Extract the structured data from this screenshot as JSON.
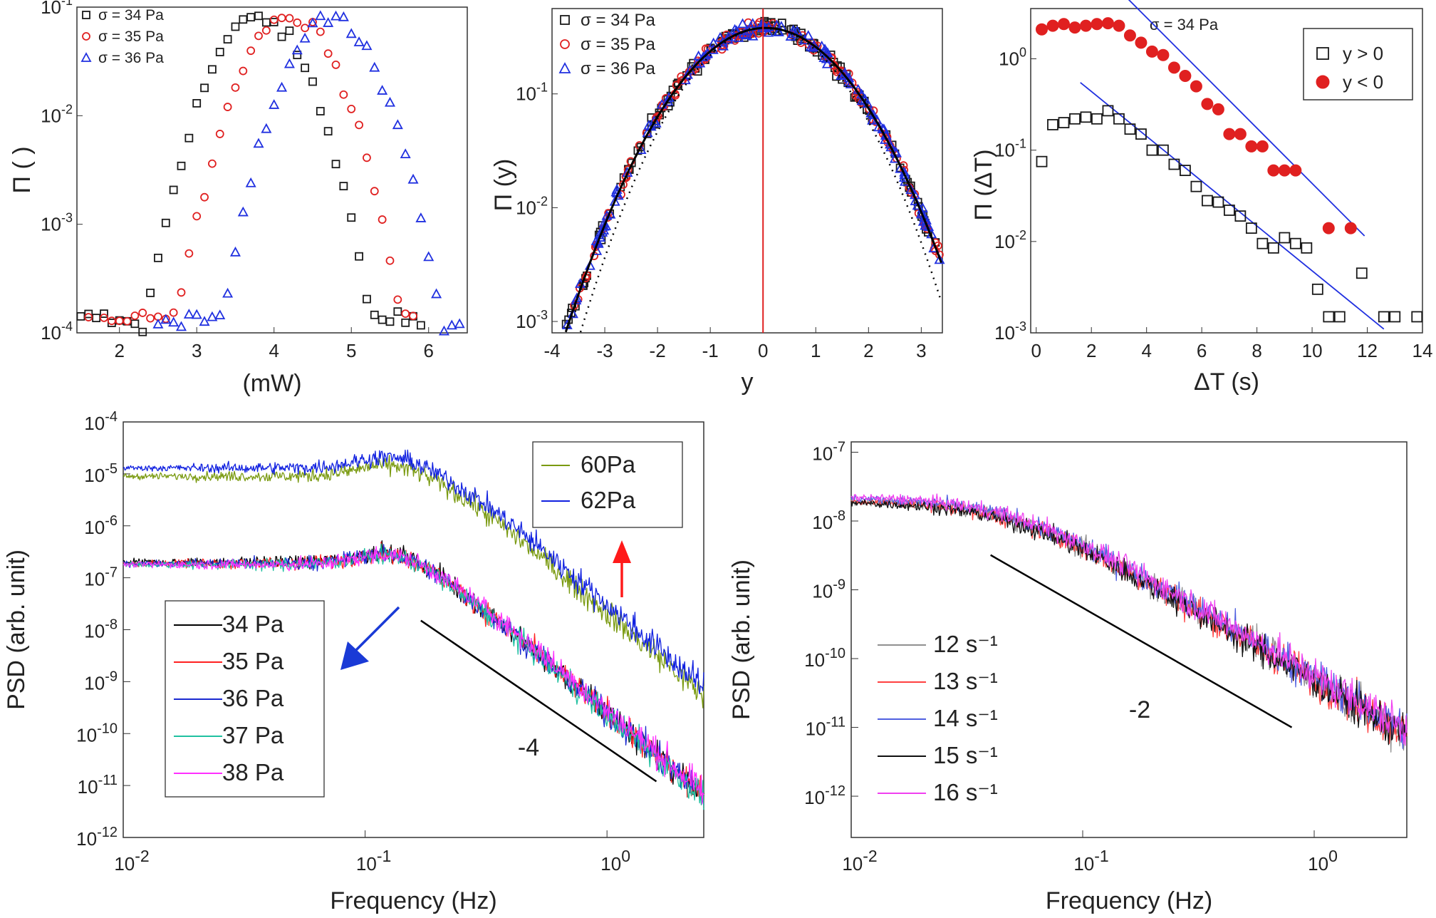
{
  "chart_data": [
    {
      "id": "a",
      "type": "scatter",
      "xlabel": "(mW)",
      "ylabel": "Π (  )",
      "x_ticks": [
        "2",
        "3",
        "4",
        "5",
        "6"
      ],
      "y_ticks": [
        "10",
        "10",
        "10",
        "10"
      ],
      "y_tick_exps": [
        "-4",
        "-3",
        "-2",
        "-1"
      ],
      "xlim": [
        1.45,
        6.5
      ],
      "ylim_log10": [
        -4,
        -1
      ],
      "series": [
        {
          "name": "σ = 34 Pa",
          "marker": "square",
          "color": "#1a1a1a",
          "mu": 3.8,
          "sigma": 0.62,
          "x": [
            1.5,
            1.6,
            1.7,
            1.8,
            1.9,
            2.0,
            2.1,
            2.2,
            2.3,
            2.4,
            2.5,
            2.6,
            2.7,
            2.8,
            2.9,
            3.0,
            3.1,
            3.2,
            3.3,
            3.4,
            3.5,
            3.6,
            3.7,
            3.8,
            3.9,
            4.0,
            4.1,
            4.2,
            4.3,
            4.4,
            4.5,
            4.6,
            4.7,
            4.8,
            4.9,
            5.0,
            5.1,
            5.2,
            5.3,
            5.4,
            5.5,
            5.6,
            5.7,
            5.8,
            5.9
          ]
        },
        {
          "name": "σ = 35 Pa",
          "marker": "circle",
          "color": "#e02020",
          "mu": 4.2,
          "sigma": 0.62,
          "x": [
            1.6,
            1.8,
            1.9,
            2.0,
            2.1,
            2.2,
            2.3,
            2.4,
            2.5,
            2.6,
            2.7,
            2.8,
            2.9,
            3.0,
            3.1,
            3.2,
            3.3,
            3.4,
            3.5,
            3.6,
            3.7,
            3.8,
            3.9,
            4.0,
            4.1,
            4.2,
            4.3,
            4.4,
            4.5,
            4.6,
            4.7,
            4.8,
            4.9,
            5.0,
            5.1,
            5.2,
            5.3,
            5.4,
            5.5,
            5.6,
            5.7,
            5.8
          ]
        },
        {
          "name": "σ = 36 Pa",
          "marker": "triangle",
          "color": "#2030e0",
          "mu": 4.75,
          "sigma": 0.6,
          "x": [
            2.5,
            2.6,
            2.7,
            2.8,
            2.9,
            3.0,
            3.1,
            3.2,
            3.3,
            3.4,
            3.5,
            3.6,
            3.7,
            3.8,
            3.9,
            4.0,
            4.1,
            4.2,
            4.3,
            4.4,
            4.5,
            4.6,
            4.7,
            4.8,
            4.9,
            5.0,
            5.1,
            5.2,
            5.3,
            5.4,
            5.5,
            5.6,
            5.7,
            5.8,
            5.9,
            6.0,
            6.1,
            6.2,
            6.3,
            6.4
          ]
        }
      ]
    },
    {
      "id": "b",
      "type": "scatter",
      "xlabel": "y",
      "ylabel": "Π (y)",
      "x_ticks": [
        "-4",
        "-3",
        "-2",
        "-1",
        "0",
        "1",
        "2",
        "3"
      ],
      "y_ticks": [
        "10",
        "10",
        "10"
      ],
      "y_tick_exps": [
        "-3",
        "-2",
        "-1"
      ],
      "xlim": [
        -4,
        3.4
      ],
      "ylim_log10": [
        -3.1,
        -0.25
      ],
      "series": [
        {
          "name": "σ = 34 Pa",
          "marker": "square",
          "color": "#1a1a1a"
        },
        {
          "name": "σ = 35 Pa",
          "marker": "circle",
          "color": "#e02020"
        },
        {
          "name": "σ = 36 Pa",
          "marker": "triangle",
          "color": "#2030e0"
        }
      ],
      "curves": [
        {
          "style": "solid",
          "color": "#000000",
          "kind": "fit",
          "mu": 0.05,
          "sigma": 1.08,
          "peak": 0.38
        },
        {
          "style": "dotted",
          "color": "#000000",
          "kind": "gaussian",
          "mu": 0.05,
          "sigma": 1.0,
          "peak": 0.38
        }
      ],
      "vline_x": 0,
      "vline_color": "#e02020"
    },
    {
      "id": "c",
      "type": "scatter",
      "title": "σ = 34 Pa",
      "xlabel": "ΔT (s)",
      "ylabel": "Π (ΔT)",
      "x_ticks": [
        "0",
        "2",
        "4",
        "6",
        "8",
        "10",
        "12",
        "14"
      ],
      "y_ticks": [
        "10",
        "10",
        "10",
        "10"
      ],
      "y_tick_exps": [
        "-3",
        "-2",
        "-1",
        "0"
      ],
      "xlim": [
        -0.2,
        14
      ],
      "ylim_log10": [
        -3,
        0.55
      ],
      "series": [
        {
          "name": "y > 0",
          "marker": "square",
          "color": "#1a1a1a",
          "x": [
            0.2,
            0.6,
            1.0,
            1.4,
            1.8,
            2.2,
            2.6,
            3.0,
            3.4,
            3.8,
            4.2,
            4.6,
            5.0,
            5.4,
            5.8,
            6.2,
            6.6,
            7.0,
            7.4,
            7.8,
            8.2,
            8.6,
            9.0,
            9.4,
            9.8,
            10.2,
            10.6,
            11.0,
            11.8,
            12.6,
            13.0,
            13.8
          ],
          "y": [
            0.075,
            0.19,
            0.2,
            0.22,
            0.23,
            0.22,
            0.27,
            0.22,
            0.17,
            0.15,
            0.1,
            0.1,
            0.07,
            0.06,
            0.04,
            0.028,
            0.027,
            0.022,
            0.019,
            0.014,
            0.0095,
            0.0085,
            0.011,
            0.0095,
            0.0085,
            0.003,
            0.0015,
            0.0015,
            0.0045,
            0.0015,
            0.0015,
            0.0015
          ]
        },
        {
          "name": "y < 0",
          "marker": "filled-circle",
          "color": "#e02020",
          "x": [
            0.2,
            0.6,
            1.0,
            1.4,
            1.8,
            2.2,
            2.6,
            3.0,
            3.4,
            3.8,
            4.2,
            4.6,
            5.0,
            5.4,
            5.8,
            6.2,
            6.6,
            7.0,
            7.4,
            7.8,
            8.2,
            8.6,
            9.0,
            9.4,
            10.6,
            11.4
          ],
          "y": [
            2.1,
            2.3,
            2.4,
            2.2,
            2.3,
            2.4,
            2.45,
            2.3,
            1.8,
            1.5,
            1.2,
            1.1,
            0.8,
            0.65,
            0.5,
            0.32,
            0.28,
            0.15,
            0.15,
            0.11,
            0.11,
            0.06,
            0.06,
            0.06,
            0.014,
            0.014
          ]
        }
      ],
      "fit_lines": [
        {
          "color": "#2030e0",
          "x": [
            1.6,
            12.6
          ],
          "y": [
            0.55,
            0.0011
          ]
        },
        {
          "color": "#2030e0",
          "x": [
            2.6,
            11.9
          ],
          "y": [
            7.5,
            0.0115
          ]
        }
      ]
    },
    {
      "id": "d",
      "type": "line",
      "xlabel": "Frequency (Hz)",
      "ylabel": "PSD (arb. unit)",
      "x_ticks": [
        "10",
        "10",
        "10"
      ],
      "x_tick_exps": [
        "-2",
        "-1",
        "0"
      ],
      "y_ticks": [
        "10",
        "10",
        "10",
        "10",
        "10",
        "10",
        "10",
        "10",
        "10"
      ],
      "y_tick_exps": [
        "-12",
        "-11",
        "-10",
        "-9",
        "-8",
        "-7",
        "-6",
        "-5",
        "-4"
      ],
      "xlim_log10": [
        -2,
        0.4
      ],
      "ylim_log10": [
        -12,
        -4
      ],
      "series": [
        {
          "name": "34 Pa",
          "color": "#000000",
          "level": 2e-07,
          "fc": 0.19,
          "slope": 4
        },
        {
          "name": "35 Pa",
          "color": "#ff2020",
          "level": 1.9e-07,
          "fc": 0.19,
          "slope": 4
        },
        {
          "name": "36 Pa",
          "color": "#1a2ad0",
          "level": 1.9e-07,
          "fc": 0.19,
          "slope": 4
        },
        {
          "name": "37 Pa",
          "color": "#20c0a0",
          "level": 1.8e-07,
          "fc": 0.19,
          "slope": 4
        },
        {
          "name": "38 Pa",
          "color": "#ff30ff",
          "level": 1.8e-07,
          "fc": 0.2,
          "slope": 4
        },
        {
          "name": "60Pa",
          "color": "#7a9a10",
          "level": 9e-06,
          "fc": 0.22,
          "slope": 4
        },
        {
          "name": "62Pa",
          "color": "#1020e0",
          "level": 1.3e-05,
          "fc": 0.22,
          "slope": 4
        }
      ],
      "slope_annotation": "-4",
      "guide_line": {
        "x": [
          0.17,
          1.6
        ],
        "y": [
          1.5e-08,
          1.2e-11
        ]
      }
    },
    {
      "id": "e",
      "type": "line",
      "xlabel": "Frequency (Hz)",
      "ylabel": "PSD (arb. unit)",
      "x_ticks": [
        "10",
        "10",
        "10"
      ],
      "x_tick_exps": [
        "-2",
        "-1",
        "0"
      ],
      "y_ticks": [
        "10",
        "10",
        "10",
        "10",
        "10",
        "10"
      ],
      "y_tick_exps": [
        "-12",
        "-11",
        "-10",
        "-9",
        "-8",
        "-7"
      ],
      "xlim_log10": [
        -2,
        0.4
      ],
      "ylim_log10": [
        -12.6,
        -6.85
      ],
      "series": [
        {
          "name": "12  s⁻¹",
          "color": "#909090",
          "level": 2e-08,
          "fc": 0.05,
          "slope": 2
        },
        {
          "name": "13  s⁻¹",
          "color": "#ff4040",
          "level": 2e-08,
          "fc": 0.05,
          "slope": 2
        },
        {
          "name": "14  s⁻¹",
          "color": "#5060e0",
          "level": 2.2e-08,
          "fc": 0.05,
          "slope": 2
        },
        {
          "name": "15  s⁻¹",
          "color": "#101010",
          "level": 1.9e-08,
          "fc": 0.05,
          "slope": 2
        },
        {
          "name": "16  s⁻¹",
          "color": "#f040f0",
          "level": 2.3e-08,
          "fc": 0.05,
          "slope": 2
        }
      ],
      "slope_annotation": "-2",
      "guide_line": {
        "x": [
          0.04,
          0.8
        ],
        "y": [
          3.2e-09,
          1e-11
        ]
      }
    }
  ]
}
